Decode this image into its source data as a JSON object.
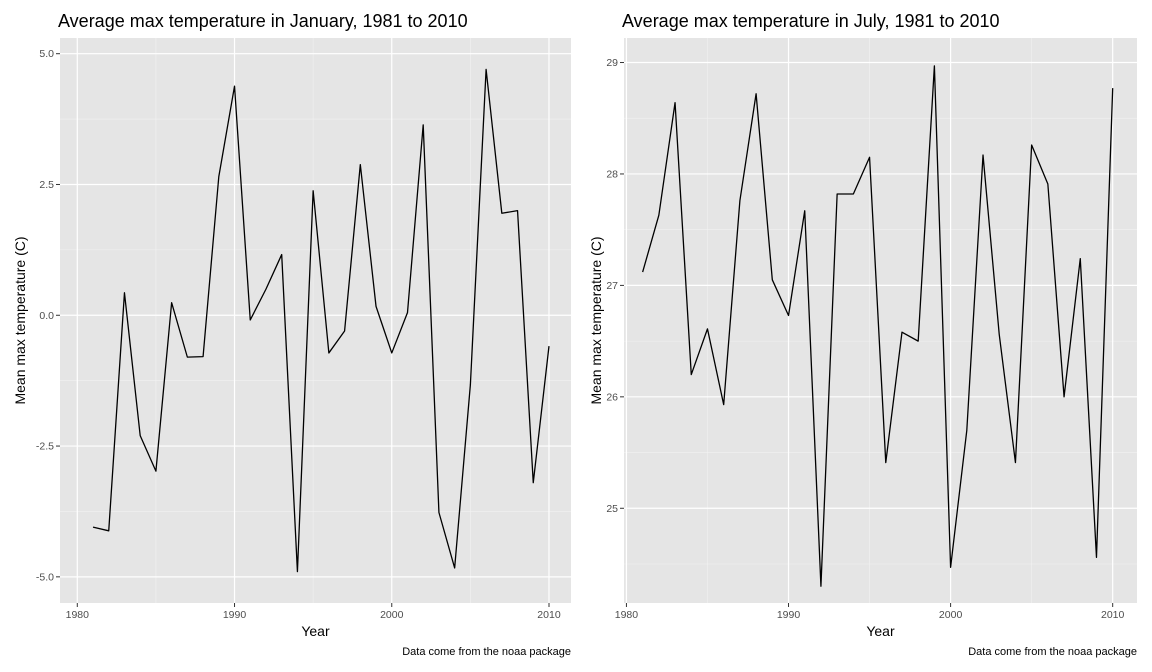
{
  "chart_data": [
    {
      "type": "line",
      "title": "Average max temperature in January, 1981 to 2010",
      "xlabel": "Year",
      "ylabel": "Mean max temperature (C)",
      "caption": "Data come from the noaa package",
      "xlim": [
        1980,
        2010
      ],
      "ylim": [
        -5.0,
        5.0
      ],
      "xticks": [
        1980,
        1990,
        2000,
        2010
      ],
      "yticks": [
        -5.0,
        -2.5,
        0.0,
        2.5,
        5.0
      ],
      "ytick_labels": [
        "-5.0",
        "-2.5",
        "0.0",
        "2.5",
        "5.0"
      ],
      "grid": true,
      "series": [
        {
          "x": [
            1981,
            1982,
            1983,
            1984,
            1985,
            1986,
            1987,
            1988,
            1989,
            1990,
            1991,
            1992,
            1993,
            1994,
            1995,
            1996,
            1997,
            1998,
            1999,
            2000,
            2001,
            2002,
            2003,
            2004,
            2005,
            2006,
            2007,
            2008,
            2009,
            2010
          ],
          "values": [
            -4.05,
            -4.12,
            0.43,
            -2.3,
            -2.98,
            0.24,
            -0.8,
            -0.79,
            2.65,
            4.38,
            -0.09,
            0.5,
            1.16,
            -4.9,
            2.38,
            -0.72,
            -0.3,
            2.88,
            0.17,
            -0.72,
            0.05,
            3.64,
            -3.77,
            -4.83,
            -1.33,
            4.7,
            1.95,
            2.0,
            -3.2,
            -0.59
          ]
        }
      ]
    },
    {
      "type": "line",
      "title": "Average max temperature in July, 1981 to 2010",
      "xlabel": "Year",
      "ylabel": "Mean max temperature (C)",
      "caption": "Data come from the noaa package",
      "xlim": [
        1980,
        2010
      ],
      "ylim": [
        25,
        29
      ],
      "xticks": [
        1980,
        1990,
        2000,
        2010
      ],
      "yticks": [
        25,
        26,
        27,
        28,
        29
      ],
      "ytick_labels": [
        "25",
        "26",
        "27",
        "28",
        "29"
      ],
      "grid": true,
      "series": [
        {
          "x": [
            1981,
            1982,
            1983,
            1984,
            1985,
            1986,
            1987,
            1988,
            1989,
            1990,
            1991,
            1992,
            1993,
            1994,
            1995,
            1996,
            1997,
            1998,
            1999,
            2000,
            2001,
            2002,
            2003,
            2004,
            2005,
            2006,
            2007,
            2008,
            2009,
            2010
          ],
          "values": [
            27.12,
            27.63,
            28.64,
            26.2,
            26.61,
            25.93,
            27.76,
            28.72,
            27.05,
            26.73,
            27.67,
            24.3,
            27.82,
            27.82,
            28.15,
            25.41,
            26.58,
            26.5,
            28.97,
            24.47,
            25.7,
            28.17,
            26.56,
            25.41,
            28.26,
            27.91,
            26.0,
            27.24,
            24.56,
            28.77
          ]
        }
      ]
    }
  ]
}
